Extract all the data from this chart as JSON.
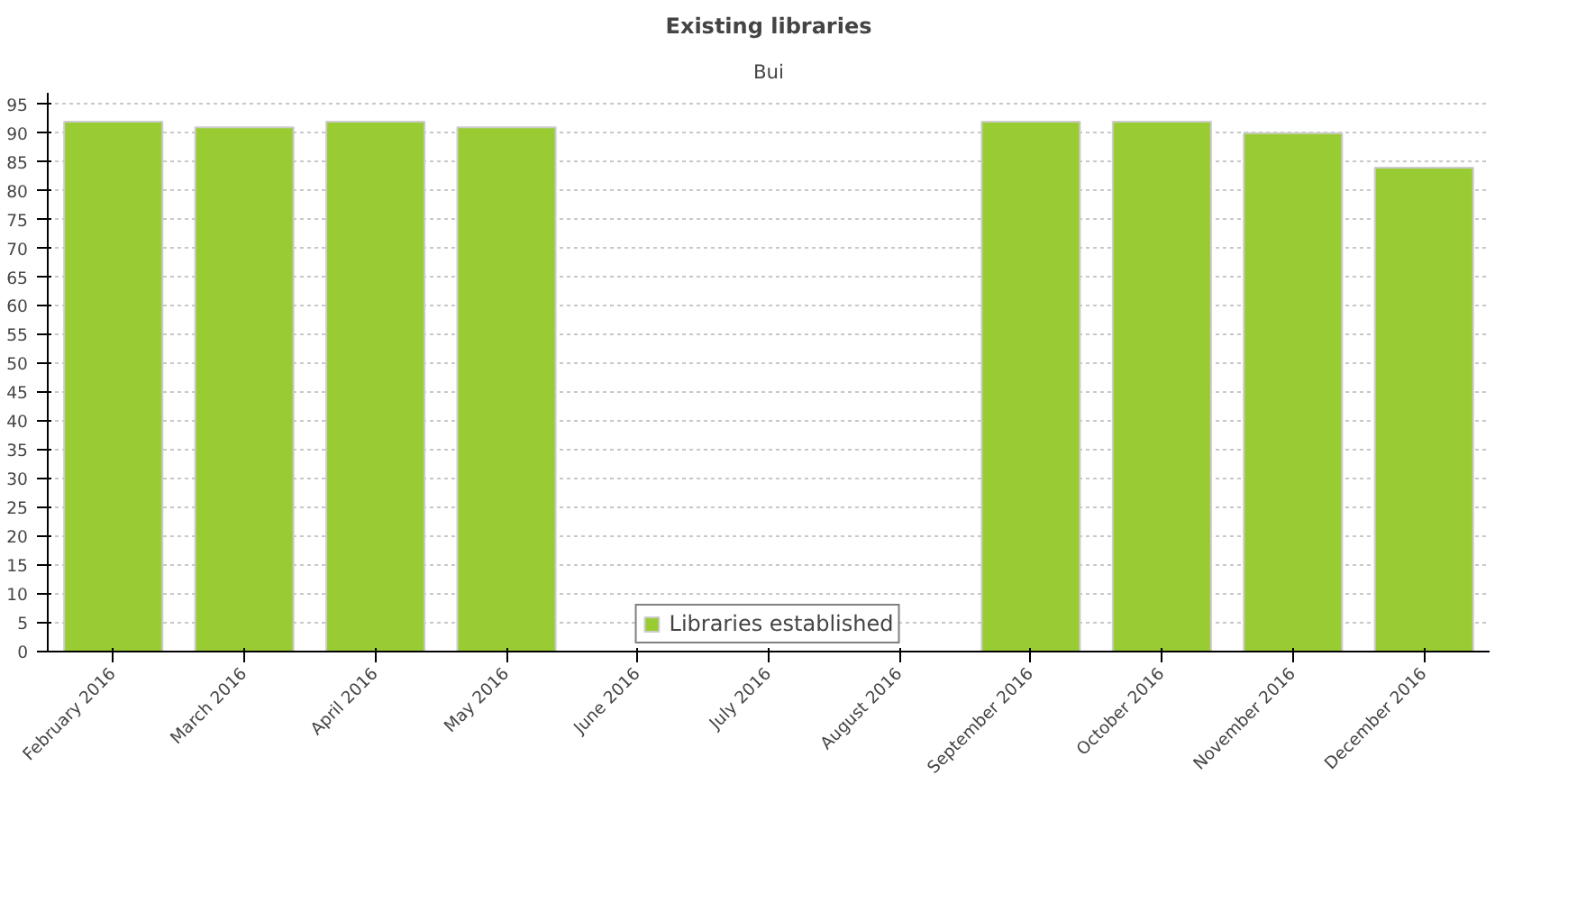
{
  "chart_data": {
    "type": "bar",
    "title": "Existing libraries",
    "subtitle": "Bui",
    "categories": [
      "February 2016",
      "March 2016",
      "April 2016",
      "May 2016",
      "June 2016",
      "July 2016",
      "August 2016",
      "September 2016",
      "October 2016",
      "November 2016",
      "December 2016"
    ],
    "series": [
      {
        "name": "Libraries established",
        "color": "#99cc33",
        "values": [
          92,
          91,
          92,
          91,
          null,
          null,
          null,
          92,
          92,
          90,
          84
        ]
      }
    ],
    "ylim": [
      0,
      97
    ],
    "yticks": [
      0,
      5,
      10,
      15,
      20,
      25,
      30,
      35,
      40,
      45,
      50,
      55,
      60,
      65,
      70,
      75,
      80,
      85,
      90,
      95
    ],
    "grid": "y",
    "legend": "bottom"
  }
}
